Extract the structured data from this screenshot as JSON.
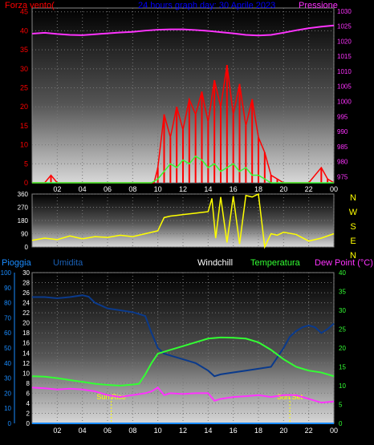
{
  "colors": {
    "wind": "#ff0000",
    "wind_gust_dir": "#ffff00",
    "pressure": "#ff33ff",
    "title": "#0000ff",
    "rain": "#1a8cff",
    "humidity": "#1a5fb4",
    "windchill": "#ffffff",
    "temperature": "#33ff33",
    "dewpoint": "#ff33ff",
    "humidity_line": "#0a3a8c",
    "wind_avg": "#33ff33"
  },
  "chart_data": [
    {
      "type": "line",
      "title": "24 hours graph day:  30 Aprile 2023",
      "left_label": "Forza vento(",
      "right_label": "Pressione",
      "x_ticks": [
        "02",
        "04",
        "06",
        "08",
        "10",
        "12",
        "14",
        "16",
        "18",
        "20",
        "22",
        "00"
      ],
      "x_hours": [
        2,
        4,
        6,
        8,
        10,
        12,
        14,
        16,
        18,
        20,
        22,
        24
      ],
      "xlim": [
        0,
        24
      ],
      "y_left": {
        "ticks": [
          0,
          5,
          10,
          15,
          20,
          25,
          30,
          35,
          40,
          45
        ],
        "ylim": [
          0,
          46
        ]
      },
      "y_right": {
        "ticks": [
          975,
          980,
          985,
          990,
          995,
          1000,
          1005,
          1010,
          1015,
          1020,
          1025,
          1030
        ],
        "ylim": [
          973,
          1031
        ]
      },
      "series": [
        {
          "role": "pressure",
          "axis": "right",
          "x": [
            0,
            1,
            2,
            3,
            4,
            5,
            6,
            7,
            8,
            9,
            10,
            11,
            12,
            13,
            14,
            15,
            16,
            17,
            18,
            19,
            20,
            21,
            22,
            23,
            24
          ],
          "values": [
            1022.5,
            1022.8,
            1022.4,
            1022.1,
            1022.0,
            1022.3,
            1022.6,
            1022.9,
            1023.1,
            1023.5,
            1023.8,
            1023.9,
            1023.9,
            1023.7,
            1023.4,
            1023.0,
            1022.6,
            1022.1,
            1021.9,
            1022.1,
            1022.8,
            1023.6,
            1024.3,
            1024.8,
            1025.2
          ]
        },
        {
          "role": "wind_gust",
          "axis": "left",
          "x": [
            0,
            1,
            1.5,
            2,
            3,
            4,
            5,
            6,
            7,
            8,
            9,
            9.7,
            10,
            10.5,
            11,
            11.5,
            12,
            12.5,
            13,
            13.5,
            14,
            14.5,
            15,
            15.5,
            16,
            16.5,
            17,
            17.5,
            18,
            18.5,
            19,
            19.5,
            20,
            21,
            22,
            23,
            23.5,
            24
          ],
          "values": [
            0,
            0,
            2,
            0,
            0,
            0,
            0,
            0,
            0,
            0,
            0,
            0,
            4,
            18,
            12,
            20,
            14,
            22,
            18,
            24,
            16,
            27,
            20,
            31,
            18,
            26,
            15,
            22,
            12,
            8,
            2,
            1,
            0,
            0,
            0,
            4,
            1,
            0
          ]
        },
        {
          "role": "wind_avg",
          "axis": "left",
          "x": [
            0,
            2,
            4,
            6,
            8,
            9.5,
            10,
            10.5,
            11,
            11.5,
            12,
            12.5,
            13,
            13.5,
            14,
            14.5,
            15,
            15.5,
            16,
            16.5,
            17,
            17.5,
            18,
            18.5,
            19,
            20,
            22,
            24
          ],
          "values": [
            0,
            0,
            0,
            0,
            0,
            0,
            1,
            3,
            5,
            4,
            6,
            5,
            7,
            6,
            4,
            5,
            3,
            4,
            5,
            3,
            4,
            2,
            2,
            1,
            0,
            0,
            0,
            0
          ]
        }
      ]
    },
    {
      "type": "line",
      "y_ticks": [
        0,
        90,
        180,
        270,
        360
      ],
      "ylim": [
        0,
        360
      ],
      "direction_labels": [
        "N",
        "W",
        "S",
        "E",
        "N"
      ],
      "xlim": [
        0,
        24
      ],
      "series": [
        {
          "role": "wind_direction",
          "x": [
            0,
            1,
            2,
            3,
            4,
            5,
            6,
            7,
            8,
            9,
            10,
            10.5,
            11,
            11.5,
            12,
            12.5,
            13,
            13.5,
            14,
            14.3,
            14.6,
            15,
            15.5,
            16,
            16.5,
            17,
            17.5,
            18,
            18.5,
            19,
            19.5,
            20,
            21,
            22,
            23,
            24
          ],
          "values": [
            45,
            60,
            50,
            75,
            55,
            70,
            65,
            80,
            70,
            90,
            110,
            200,
            210,
            215,
            220,
            225,
            230,
            235,
            240,
            330,
            60,
            340,
            30,
            345,
            20,
            350,
            340,
            360,
            0,
            90,
            80,
            100,
            85,
            40,
            60,
            90
          ]
        }
      ]
    },
    {
      "type": "line",
      "labels": {
        "rain": "Pioggia",
        "humidity": "Umidita",
        "windchill": "Windchill",
        "temperature": "Temperatura",
        "dewpoint": "Dew Point (°C)"
      },
      "sun_rise_label": "Sun Rise",
      "sun_set_label": "Sun Set",
      "sun_rise_hour": 6.3,
      "sun_set_hour": 20.5,
      "x_ticks": [
        "02",
        "04",
        "06",
        "08",
        "10",
        "12",
        "14",
        "16",
        "18",
        "20",
        "22",
        "00"
      ],
      "x_hours": [
        2,
        4,
        6,
        8,
        10,
        12,
        14,
        16,
        18,
        20,
        22,
        24
      ],
      "xlim": [
        0,
        24
      ],
      "axis_rain": {
        "ticks": [
          0,
          10,
          20,
          30,
          40,
          50,
          60,
          70,
          80,
          90,
          100
        ],
        "ylim": [
          0,
          100
        ]
      },
      "axis_humidity": {
        "ticks": [
          0,
          2,
          4,
          6,
          8,
          10,
          12,
          14,
          16,
          18,
          20,
          22,
          24,
          26,
          28,
          30
        ],
        "ylim": [
          0,
          30
        ]
      },
      "axis_temp": {
        "ticks": [
          0,
          5,
          10,
          15,
          20,
          25,
          30,
          35,
          40
        ],
        "ylim": [
          0,
          40
        ]
      },
      "series": [
        {
          "role": "humidity",
          "axis": "temp",
          "x": [
            0,
            1,
            2,
            3,
            4,
            4.5,
            5,
            6,
            7,
            8,
            8.5,
            9,
            9.5,
            10,
            10.5,
            11,
            12,
            13,
            14,
            14.5,
            15,
            16,
            17,
            18,
            19,
            20,
            20.5,
            21,
            21.5,
            22,
            22.5,
            23,
            23.5,
            24
          ],
          "values": [
            33.5,
            33.5,
            33.2,
            33.5,
            34.0,
            33.6,
            32.0,
            30.5,
            30.0,
            29.5,
            29.0,
            28.5,
            24.0,
            20.0,
            18.5,
            18.0,
            17.0,
            16.0,
            14.0,
            12.5,
            13.0,
            13.5,
            14.0,
            14.5,
            15.0,
            20.0,
            23.0,
            24.5,
            25.5,
            26.0,
            25.5,
            24.0,
            25.0,
            26.5
          ]
        },
        {
          "role": "temperature",
          "axis": "temp",
          "x": [
            0,
            1,
            2,
            3,
            4,
            5,
            6,
            7,
            8,
            8.5,
            9,
            9.5,
            10,
            11,
            12,
            13,
            14,
            15,
            16,
            17,
            18,
            19,
            20,
            21,
            22,
            23,
            24
          ],
          "values": [
            12.5,
            12.4,
            12.0,
            11.5,
            11.0,
            10.5,
            10.2,
            10.0,
            10.3,
            10.5,
            13.0,
            16.0,
            18.5,
            19.5,
            20.5,
            21.5,
            22.5,
            22.8,
            22.7,
            22.5,
            21.5,
            19.5,
            17.0,
            15.0,
            14.0,
            13.5,
            12.5
          ]
        },
        {
          "role": "dewpoint",
          "axis": "temp",
          "x": [
            0,
            1,
            2,
            3,
            4,
            5,
            6,
            7,
            8,
            9,
            9.5,
            10,
            10.5,
            11,
            12,
            13,
            14,
            14.5,
            15,
            16,
            17,
            18,
            19,
            20,
            21,
            22,
            23,
            24
          ],
          "values": [
            9.5,
            9.3,
            9.0,
            9.2,
            9.0,
            8.5,
            7.5,
            7.0,
            7.5,
            8.0,
            8.5,
            9.5,
            7.5,
            8.0,
            7.8,
            8.0,
            8.0,
            6.0,
            6.5,
            7.0,
            7.2,
            7.5,
            7.0,
            7.5,
            7.5,
            6.5,
            5.5,
            5.8
          ]
        },
        {
          "role": "rain",
          "axis": "rain",
          "x": [
            0,
            24
          ],
          "values": [
            0,
            0
          ]
        }
      ]
    }
  ]
}
